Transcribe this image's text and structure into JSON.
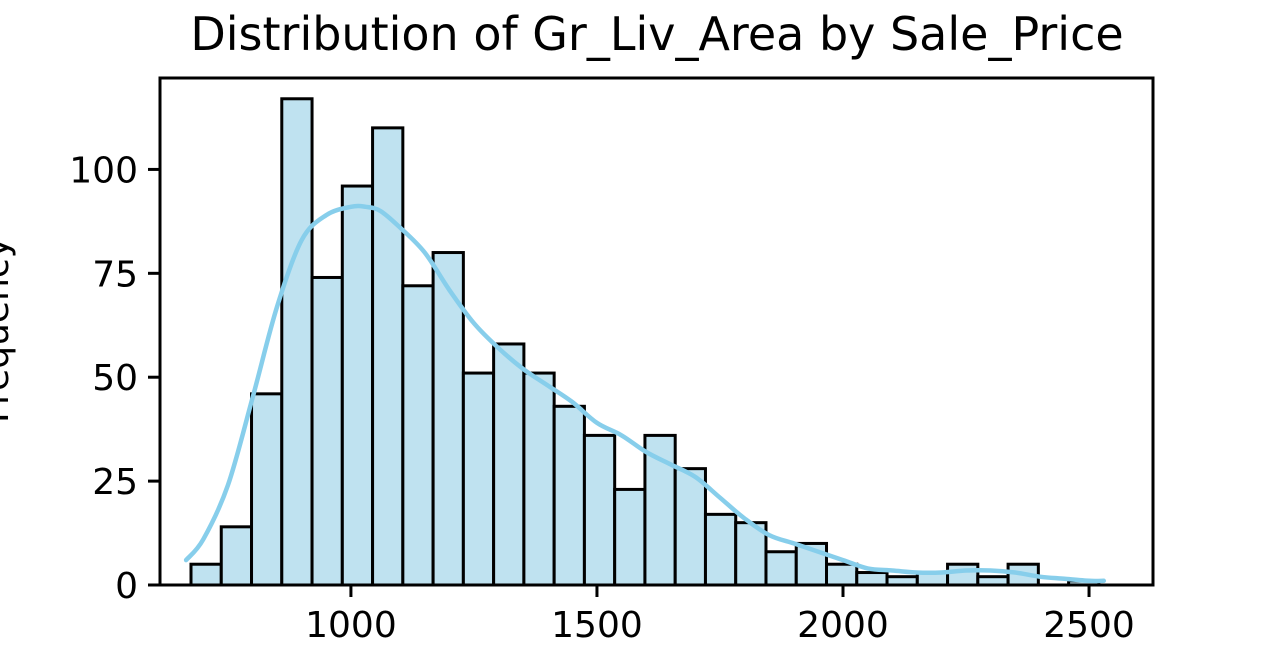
{
  "chart_data": {
    "type": "bar",
    "title": "Distribution of Gr_Liv_Area by Sale_Price",
    "xlabel": "",
    "ylabel": "Frequency",
    "xlim": [
      612,
      2630
    ],
    "ylim": [
      0,
      122
    ],
    "x_ticks": [
      1000,
      1500,
      2000,
      2500
    ],
    "y_ticks": [
      0,
      25,
      50,
      75,
      100
    ],
    "bins": {
      "start": 675,
      "width": 61.5,
      "counts": [
        5,
        14,
        46,
        117,
        74,
        96,
        110,
        72,
        80,
        51,
        58,
        51,
        43,
        36,
        23,
        36,
        28,
        17,
        15,
        8,
        10,
        5,
        3,
        2,
        3,
        5,
        2,
        5,
        0,
        1
      ]
    },
    "kde": {
      "x": [
        665,
        700,
        750,
        800,
        850,
        900,
        950,
        1000,
        1030,
        1060,
        1100,
        1150,
        1200,
        1250,
        1300,
        1350,
        1400,
        1450,
        1500,
        1550,
        1600,
        1650,
        1700,
        1750,
        1800,
        1850,
        1900,
        1950,
        2000,
        2050,
        2100,
        2150,
        2200,
        2250,
        2300,
        2350,
        2400,
        2450,
        2500,
        2530
      ],
      "y": [
        6,
        11,
        24,
        45,
        67,
        83,
        89,
        91,
        91,
        90,
        86,
        80,
        71,
        63,
        57,
        52,
        48,
        44,
        39,
        36,
        32,
        29,
        26,
        21,
        16,
        12,
        10,
        8,
        6,
        4,
        3.5,
        3,
        3,
        3.5,
        3.5,
        3,
        2,
        1.5,
        1,
        1
      ]
    },
    "colors": {
      "bar_fill": "#bfe2f0",
      "bar_edge": "#000000",
      "kde_line": "#87ceeb"
    },
    "grid": false,
    "legend": "none"
  }
}
